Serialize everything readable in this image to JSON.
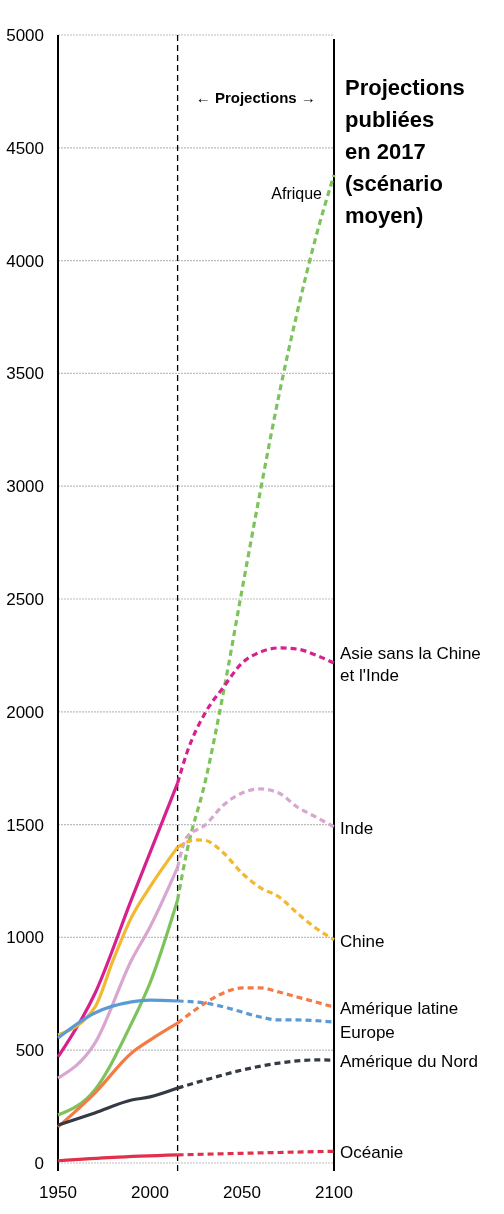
{
  "chart_data": {
    "type": "line",
    "title": "Projections publiées en 2017 (scénario moyen)",
    "xlim": [
      1950,
      2100
    ],
    "ylim": [
      0,
      5000
    ],
    "xticks": [
      1950,
      2000,
      2050,
      2100
    ],
    "yticks": [
      0,
      500,
      1000,
      1500,
      2000,
      2500,
      3000,
      3500,
      4000,
      4500,
      5000
    ],
    "grid": "y",
    "ref_lines": [
      {
        "axis": "x",
        "value": 2015,
        "label": "← Projections →",
        "line_style": "dashed",
        "color": "#000000"
      }
    ],
    "series": [
      {
        "color": "#7dc35b",
        "line_style": "solid",
        "x": [
          1950,
          1970,
          1990,
          2000,
          2015
        ],
        "values": [
          213,
          324,
          620,
          798,
          1166
        ]
      },
      {
        "name": "Afrique",
        "color": "#7dc35b",
        "line_style": "dashed",
        "x": [
          2015,
          2020,
          2030,
          2040,
          2050,
          2060,
          2070,
          2080,
          2090,
          2100
        ],
        "values": [
          1166,
          1380,
          1690,
          2090,
          2540,
          2980,
          3400,
          3770,
          4100,
          4380
        ]
      },
      {
        "color": "#d6208f",
        "line_style": "solid",
        "x": [
          1950,
          1970,
          1990,
          2015
        ],
        "values": [
          470,
          750,
          1170,
          1684
        ]
      },
      {
        "name": "Asie sans la Chine et l'Inde",
        "color": "#d6208f",
        "line_style": "dashed",
        "x": [
          2015,
          2020,
          2030,
          2040,
          2050,
          2060,
          2070,
          2080,
          2090,
          2100
        ],
        "values": [
          1684,
          1817,
          1995,
          2110,
          2216,
          2265,
          2283,
          2278,
          2252,
          2216
        ]
      },
      {
        "color": "#d8a6d0",
        "line_style": "solid",
        "x": [
          1950,
          1970,
          1990,
          2000,
          2015
        ],
        "values": [
          376,
          530,
          900,
          1046,
          1310
        ]
      },
      {
        "name": "Inde",
        "color": "#d8a6d0",
        "line_style": "dashed",
        "x": [
          2015,
          2020,
          2030,
          2040,
          2050,
          2060,
          2070,
          2080,
          2090,
          2100
        ],
        "values": [
          1310,
          1445,
          1498,
          1587,
          1640,
          1658,
          1640,
          1578,
          1534,
          1490
        ]
      },
      {
        "color": "#f2b830",
        "line_style": "solid",
        "x": [
          1950,
          1970,
          1980,
          1990,
          2000,
          2015
        ],
        "values": [
          567,
          690,
          900,
          1090,
          1224,
          1400
        ]
      },
      {
        "name": "Chine",
        "color": "#f2b830",
        "line_style": "dashed",
        "x": [
          2015,
          2025,
          2030,
          2040,
          2050,
          2060,
          2070,
          2080,
          2090,
          2100
        ],
        "values": [
          1400,
          1432,
          1430,
          1374,
          1285,
          1220,
          1180,
          1108,
          1042,
          990
        ]
      },
      {
        "color": "#f47b45",
        "line_style": "solid",
        "x": [
          1950,
          1970,
          1990,
          2000,
          2015
        ],
        "values": [
          160,
          310,
          488,
          545,
          620
        ]
      },
      {
        "name": "Amérique latine",
        "color": "#f47b45",
        "line_style": "dashed",
        "x": [
          2015,
          2030,
          2040,
          2050,
          2060,
          2070,
          2080,
          2090,
          2100
        ],
        "values": [
          620,
          709,
          754,
          776,
          776,
          758,
          736,
          714,
          691
        ]
      },
      {
        "color": "#5a9bd5",
        "line_style": "solid",
        "x": [
          1950,
          1970,
          1990,
          2000,
          2015
        ],
        "values": [
          554,
          665,
          714,
          722,
          718
        ]
      },
      {
        "name": "Europe",
        "color": "#5a9bd5",
        "line_style": "dashed",
        "x": [
          2015,
          2030,
          2040,
          2050,
          2060,
          2070,
          2080,
          2100
        ],
        "values": [
          718,
          709,
          692,
          669,
          647,
          634,
          634,
          625
        ]
      },
      {
        "color": "#333a44",
        "line_style": "solid",
        "x": [
          1950,
          1970,
          1990,
          2000,
          2015
        ],
        "values": [
          168,
          222,
          279,
          293,
          332
        ]
      },
      {
        "name": "Amérique du Nord",
        "color": "#333a44",
        "line_style": "dashed",
        "x": [
          2015,
          2030,
          2050,
          2070,
          2090,
          2100
        ],
        "values": [
          332,
          368,
          412,
          443,
          457,
          456
        ]
      },
      {
        "color": "#e0304a",
        "line_style": "solid",
        "x": [
          1950,
          1980,
          2015
        ],
        "values": [
          10,
          25,
          36
        ]
      },
      {
        "name": "Océanie",
        "color": "#e0304a",
        "line_style": "dashed",
        "x": [
          2015,
          2050,
          2100
        ],
        "values": [
          36,
          43,
          52
        ]
      }
    ]
  }
}
